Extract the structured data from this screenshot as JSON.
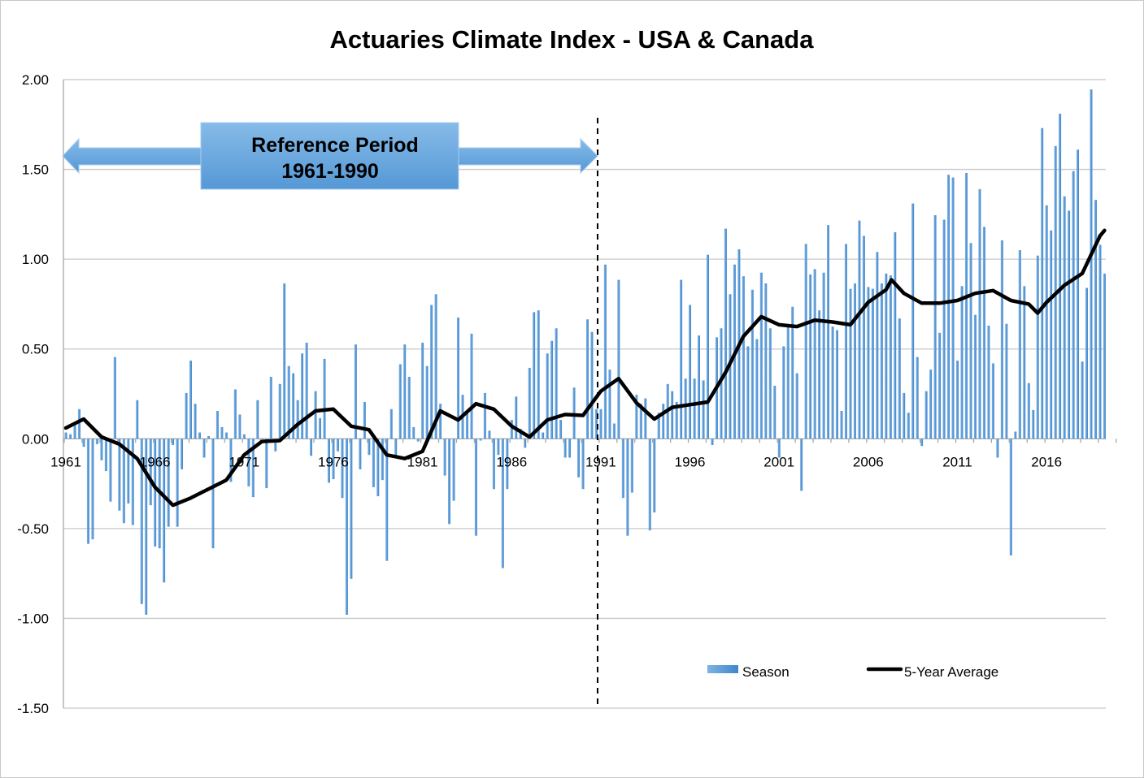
{
  "chart_data": {
    "type": "bar+line",
    "title": "Actuaries Climate Index  - USA & Canada",
    "xlabel": "",
    "ylabel": "",
    "ylim": [
      -1.5,
      2.0
    ],
    "yticks": [
      "2.00",
      "1.50",
      "1.00",
      "0.50",
      "0.00",
      "-0.50",
      "-1.00",
      "-1.50"
    ],
    "ytick_values": [
      2.0,
      1.5,
      1.0,
      0.5,
      0.0,
      -0.5,
      -1.0,
      -1.5
    ],
    "xticks": [
      "1961",
      "1966",
      "1971",
      "1976",
      "1981",
      "1986",
      "1991",
      "1996",
      "2001",
      "2006",
      "2011",
      "2016"
    ],
    "grid": true,
    "legend_position": "bottom-right",
    "bar_color": "#5b9bd5",
    "line_color": "#000000",
    "annotation": {
      "label_line1": "Reference Period",
      "label_line2": "1961-1990",
      "start_year": 1961,
      "end_year": 1991,
      "color": "#6aaae0"
    },
    "series": [
      {
        "name": "Season",
        "kind": "bar",
        "start": "1961 Q1",
        "values": [
          0.035,
          0.025,
          0.075,
          0.165,
          -0.045,
          -0.585,
          -0.56,
          -0.03,
          -0.12,
          -0.18,
          -0.35,
          0.455,
          -0.4,
          -0.47,
          -0.36,
          -0.48,
          0.215,
          -0.92,
          -0.98,
          -0.37,
          -0.6,
          -0.61,
          -0.8,
          -0.49,
          -0.035,
          -0.49,
          -0.17,
          0.255,
          0.435,
          0.195,
          0.035,
          -0.105,
          0.015,
          -0.61,
          0.155,
          0.065,
          0.035,
          -0.24,
          0.275,
          0.135,
          0.025,
          -0.265,
          -0.325,
          0.215,
          0.0,
          -0.275,
          0.345,
          -0.07,
          0.305,
          0.865,
          0.405,
          0.365,
          0.215,
          0.475,
          0.535,
          -0.095,
          0.265,
          0.115,
          0.445,
          -0.245,
          -0.225,
          -0.07,
          -0.33,
          -0.98,
          -0.78,
          0.525,
          -0.17,
          0.205,
          -0.09,
          -0.27,
          -0.32,
          -0.23,
          -0.68,
          0.165,
          -0.105,
          0.415,
          0.525,
          0.345,
          0.065,
          -0.015,
          0.535,
          0.405,
          0.745,
          0.805,
          0.195,
          -0.205,
          -0.475,
          -0.345,
          0.675,
          0.245,
          0.15,
          0.585,
          -0.54,
          -0.01,
          0.255,
          0.045,
          -0.28,
          -0.09,
          -0.72,
          -0.28,
          0.105,
          0.235,
          0.055,
          -0.05,
          0.395,
          0.705,
          0.715,
          0.035,
          0.475,
          0.545,
          0.615,
          0.105,
          -0.105,
          -0.105,
          0.285,
          -0.215,
          -0.28,
          0.665,
          0.595,
          0.165,
          0.165,
          0.97,
          0.385,
          0.085,
          0.885,
          -0.33,
          -0.54,
          -0.3,
          0.245,
          0.195,
          0.225,
          -0.51,
          -0.41,
          0.145,
          0.195,
          0.305,
          0.265,
          0.205,
          0.885,
          0.335,
          0.745,
          0.335,
          0.575,
          0.325,
          1.025,
          -0.035,
          0.565,
          0.615,
          1.17,
          0.805,
          0.97,
          1.055,
          0.905,
          0.515,
          0.83,
          0.555,
          0.925,
          0.865,
          0.615,
          0.295,
          -0.105,
          0.515,
          0.625,
          0.735,
          0.365,
          -0.29,
          1.085,
          0.915,
          0.945,
          0.715,
          0.925,
          1.19,
          0.625,
          0.605,
          0.155,
          1.085,
          0.835,
          0.865,
          1.215,
          1.13,
          0.845,
          0.835,
          1.04,
          0.865,
          0.92,
          0.91,
          1.15,
          0.67,
          0.255,
          0.145,
          1.31,
          0.455,
          -0.04,
          0.265,
          0.385,
          1.245,
          0.59,
          1.22,
          1.47,
          1.455,
          0.435,
          0.85,
          1.48,
          1.09,
          0.69,
          1.39,
          1.18,
          0.63,
          0.42,
          -0.105,
          1.105,
          0.64,
          -0.65,
          0.04,
          1.05,
          0.85,
          0.31,
          0.16,
          1.02,
          1.73,
          1.3,
          1.16,
          1.63,
          1.81,
          1.35,
          1.27,
          1.49,
          1.61,
          0.43,
          0.84,
          1.945,
          1.33,
          1.08,
          0.92
        ]
      },
      {
        "name": "5-Year Average",
        "kind": "line",
        "x": [
          1961,
          1962,
          1963,
          1964,
          1965,
          1966,
          1967,
          1968,
          1969,
          1970,
          1971,
          1972,
          1973,
          1974,
          1975,
          1976,
          1977,
          1978,
          1979,
          1980,
          1981,
          1982,
          1983,
          1984,
          1985,
          1986,
          1987,
          1988,
          1989,
          1990,
          1991,
          1992,
          1993,
          1994,
          1995,
          1996,
          1997,
          1998,
          1999,
          2000,
          2001,
          2002,
          2003,
          2004,
          2005,
          2006,
          2007,
          2007.3,
          2008,
          2009,
          2010,
          2011,
          2012,
          2013,
          2014,
          2015,
          2015.5,
          2016,
          2017,
          2018,
          2019,
          2019.25
        ],
        "y": [
          0.06,
          0.11,
          0.01,
          -0.03,
          -0.11,
          -0.27,
          -0.37,
          -0.33,
          -0.28,
          -0.23,
          -0.09,
          -0.015,
          -0.01,
          0.08,
          0.155,
          0.165,
          0.07,
          0.05,
          -0.09,
          -0.11,
          -0.07,
          0.155,
          0.105,
          0.195,
          0.165,
          0.07,
          0.01,
          0.105,
          0.135,
          0.13,
          0.265,
          0.335,
          0.2,
          0.11,
          0.175,
          0.19,
          0.205,
          0.37,
          0.57,
          0.68,
          0.635,
          0.625,
          0.66,
          0.65,
          0.635,
          0.76,
          0.83,
          0.885,
          0.81,
          0.755,
          0.755,
          0.77,
          0.81,
          0.825,
          0.77,
          0.75,
          0.7,
          0.76,
          0.855,
          0.92,
          1.13,
          1.16
        ]
      }
    ]
  }
}
